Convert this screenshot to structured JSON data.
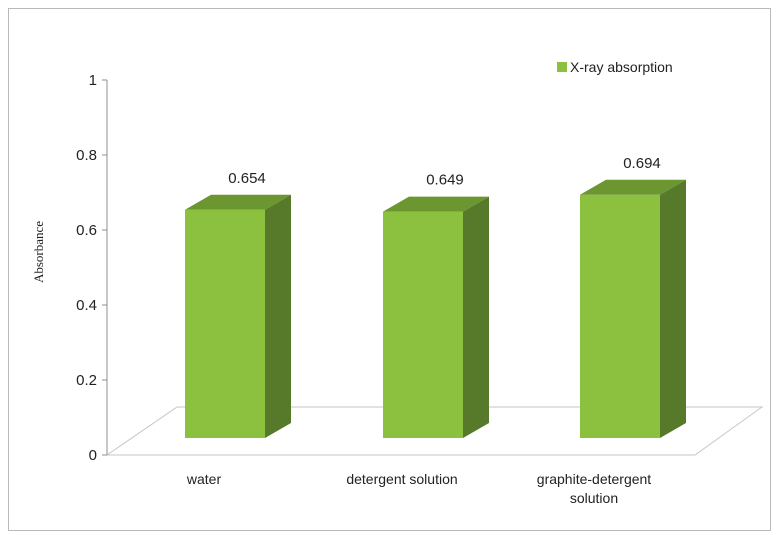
{
  "chart_data": {
    "type": "bar",
    "title": "",
    "xlabel": "",
    "ylabel": "Absorbance",
    "ylim": [
      0,
      1
    ],
    "yticks": [
      "0",
      "0.2",
      "0.4",
      "0.6",
      "0.8",
      "1"
    ],
    "categories": [
      "water",
      "detergent solution",
      "graphite-detergent solution"
    ],
    "category_lines": [
      [
        "water"
      ],
      [
        "detergent solution"
      ],
      [
        "graphite-detergent",
        "solution"
      ]
    ],
    "series": [
      {
        "name": "X-ray absorption",
        "values": [
          0.654,
          0.649,
          0.694
        ]
      }
    ],
    "data_labels": [
      "0.654",
      "0.649",
      "0.694"
    ],
    "grid": false,
    "legend_position": "top-right",
    "style": "3d-column",
    "colors": {
      "front": "#8cc13f",
      "top": "#6b9630",
      "side": "#56792a"
    }
  }
}
